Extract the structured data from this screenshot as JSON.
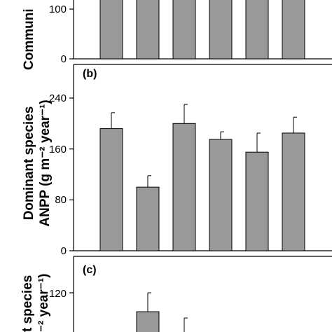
{
  "chart_data": [
    {
      "panel_label": "",
      "type": "bar",
      "ylabel": "Communi",
      "yticks": [
        0,
        100
      ],
      "ylim": [
        0,
        160
      ],
      "values": [
        null,
        null,
        null,
        null,
        null,
        null
      ],
      "errors": [
        null,
        null,
        null,
        null,
        null,
        null
      ],
      "note": "top panel cropped; bars extend beyond visible area"
    },
    {
      "panel_label": "(b)",
      "type": "bar",
      "ylabel_lines": [
        "Dominant species",
        "ANPP (g m⁻² year⁻¹)"
      ],
      "yticks": [
        0,
        80,
        160,
        240
      ],
      "ylim": [
        0,
        270
      ],
      "values": [
        192,
        100,
        200,
        175,
        155,
        185
      ],
      "errors": [
        25,
        18,
        30,
        12,
        30,
        25
      ]
    },
    {
      "panel_label": "(c)",
      "type": "bar",
      "ylabel_lines": [
        "t species",
        "⁻² year⁻¹)"
      ],
      "yticks": [
        120
      ],
      "ylim": [
        0,
        150
      ],
      "values": [
        null,
        90,
        null,
        null,
        null,
        null
      ],
      "errors": [
        null,
        30,
        null,
        null,
        null,
        null
      ],
      "partial_error_tops": [
        null,
        null,
        80,
        null,
        null,
        null
      ]
    }
  ],
  "colors": {
    "bar_fill": "#999999",
    "stroke": "#000000"
  }
}
